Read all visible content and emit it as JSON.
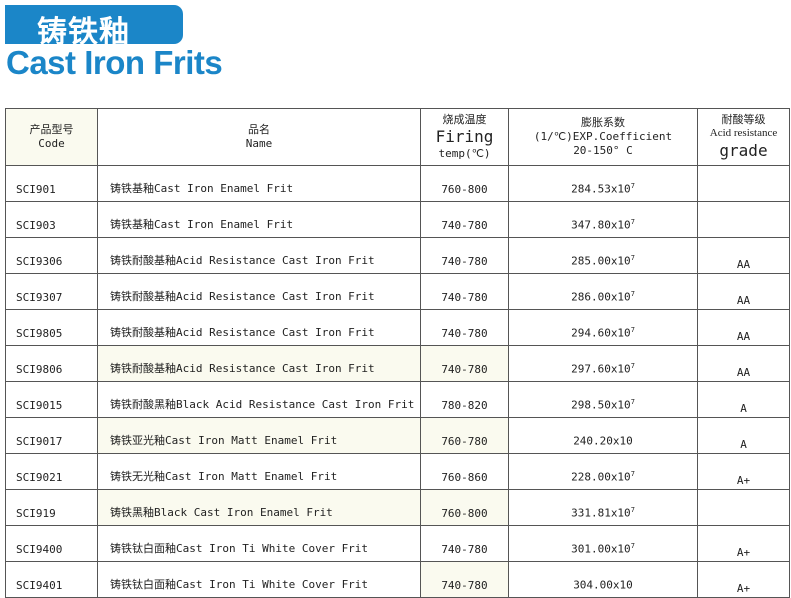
{
  "header": {
    "title_cn": "铸铁釉",
    "title_en": "Cast Iron Frits",
    "brand_color": "#1b86c8"
  },
  "table": {
    "columns": [
      {
        "cn": "产品型号",
        "en": "Code"
      },
      {
        "cn": "品名",
        "en": "Name"
      },
      {
        "cn": "烧成温度",
        "en": "Firing",
        "en2": "temp(℃)"
      },
      {
        "cn": "膨胀系数",
        "en": "(1/℃)EXP.Coefficient",
        "en2": "20-150° C"
      },
      {
        "cn": "耐酸等级",
        "en": "Acid resistance",
        "en2": "grade"
      }
    ],
    "rows": [
      {
        "code": "SCI901",
        "name": "铸铁基釉Cast Iron Enamel Frit",
        "temp": "760-800",
        "coef": "284.53x10",
        "exp": "7",
        "grade": ""
      },
      {
        "code": "SCI903",
        "name": "铸铁基釉Cast Iron Enamel Frit",
        "temp": "740-780",
        "coef": "347.80x10",
        "exp": "7",
        "grade": ""
      },
      {
        "code": "SCI9306",
        "name": "铸铁耐酸基釉Acid Resistance Cast Iron Frit",
        "temp": "740-780",
        "coef": "285.00x10",
        "exp": "7",
        "grade": "AA"
      },
      {
        "code": "SCI9307",
        "name": "铸铁耐酸基釉Acid Resistance Cast Iron Frit",
        "temp": "740-780",
        "coef": "286.00x10",
        "exp": "7",
        "grade": "AA"
      },
      {
        "code": "SCI9805",
        "name": "铸铁耐酸基釉Acid Resistance Cast Iron Frit",
        "temp": "740-780",
        "coef": "294.60x10",
        "exp": "7",
        "grade": "AA"
      },
      {
        "code": "SCI9806",
        "name": "铸铁耐酸基釉Acid Resistance Cast Iron Frit",
        "temp": "740-780",
        "coef": "297.60x10",
        "exp": "7",
        "grade": "AA"
      },
      {
        "code": "SCI9015",
        "name": "铸铁耐酸黑釉Black Acid Resistance Cast Iron Frit",
        "temp": "780-820",
        "coef": "298.50x10",
        "exp": "7",
        "grade": "A"
      },
      {
        "code": "SCI9017",
        "name": "铸铁亚光釉Cast Iron Matt Enamel Frit",
        "temp": "760-780",
        "coef": "240.20x10",
        "exp": "",
        "grade": "A"
      },
      {
        "code": "SCI9021",
        "name": "铸铁无光釉Cast Iron Matt Enamel Frit",
        "temp": "760-860",
        "coef": "228.00x10",
        "exp": "7",
        "grade": "A+"
      },
      {
        "code": "SCI919",
        "name": "铸铁黑釉Black Cast Iron Enamel Frit",
        "temp": "760-800",
        "coef": "331.81x10",
        "exp": "7",
        "grade": ""
      },
      {
        "code": "SCI9400",
        "name": "铸铁钛白面釉Cast Iron Ti White Cover Frit",
        "temp": "740-780",
        "coef": "301.00x10",
        "exp": "7",
        "grade": "A+"
      },
      {
        "code": "SCI9401",
        "name": "铸铁钛白面釉Cast Iron Ti White Cover Frit",
        "temp": "740-780",
        "coef": "304.00x10",
        "exp": "",
        "grade": "A+"
      }
    ]
  }
}
